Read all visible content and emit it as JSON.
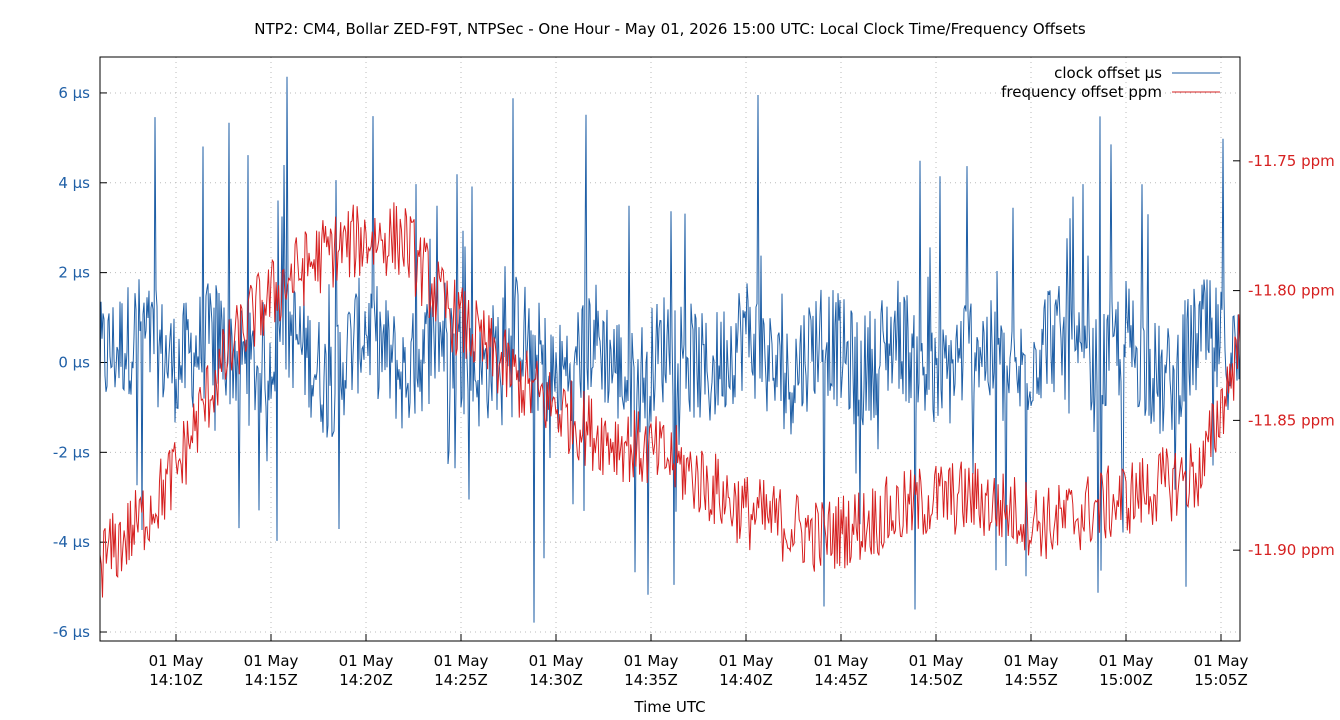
{
  "chart_data": {
    "type": "line",
    "title": "NTP2: CM4, Bollar ZED-F9T, NTPSec - One Hour - May 01, 2026 15:00 UTC: Local Clock Time/Frequency Offsets",
    "xlabel": "Time UTC",
    "ylabel": "",
    "y2label": "",
    "grid": true,
    "legend_position": "top-right",
    "x_range": [
      "2026-05-01T14:06:00Z",
      "2026-05-01T15:06:00Z"
    ],
    "y_left": {
      "unit": "µs",
      "range": [
        -6.2,
        6.8
      ],
      "ticks": [
        6,
        4,
        2,
        0,
        -2,
        -4,
        -6
      ],
      "tick_labels": [
        "6 µs",
        "4 µs",
        "2 µs",
        "0 µs",
        "-2 µs",
        "-4 µs",
        "-6 µs"
      ]
    },
    "y_right": {
      "unit": "ppm",
      "range": [
        -11.935,
        -11.71
      ],
      "ticks": [
        -11.75,
        -11.8,
        -11.85,
        -11.9
      ],
      "tick_labels": [
        "-11.75 ppm",
        "-11.80 ppm",
        "-11.85 ppm",
        "-11.90 ppm"
      ]
    },
    "x_ticks": [
      {
        "time": "2026-05-01T14:10:00Z",
        "line1": "01 May",
        "line2": "14:10Z"
      },
      {
        "time": "2026-05-01T14:15:00Z",
        "line1": "01 May",
        "line2": "14:15Z"
      },
      {
        "time": "2026-05-01T14:20:00Z",
        "line1": "01 May",
        "line2": "14:20Z"
      },
      {
        "time": "2026-05-01T14:25:00Z",
        "line1": "01 May",
        "line2": "14:25Z"
      },
      {
        "time": "2026-05-01T14:30:00Z",
        "line1": "01 May",
        "line2": "14:30Z"
      },
      {
        "time": "2026-05-01T14:35:00Z",
        "line1": "01 May",
        "line2": "14:35Z"
      },
      {
        "time": "2026-05-01T14:40:00Z",
        "line1": "01 May",
        "line2": "14:40Z"
      },
      {
        "time": "2026-05-01T14:45:00Z",
        "line1": "01 May",
        "line2": "14:45Z"
      },
      {
        "time": "2026-05-01T14:50:00Z",
        "line1": "01 May",
        "line2": "14:50Z"
      },
      {
        "time": "2026-05-01T14:55:00Z",
        "line1": "01 May",
        "line2": "14:55Z"
      },
      {
        "time": "2026-05-01T15:00:00Z",
        "line1": "01 May",
        "line2": "15:00Z"
      },
      {
        "time": "2026-05-01T15:05:00Z",
        "line1": "01 May",
        "line2": "15:05Z"
      }
    ],
    "series": [
      {
        "name": "clock offset µs",
        "axis": "left",
        "color": "#1f5fa6",
        "x": [
          "2026-05-01T14:06:00Z",
          "2026-05-01T14:08:00Z",
          "2026-05-01T14:10:00Z",
          "2026-05-01T14:12:00Z",
          "2026-05-01T14:14:00Z",
          "2026-05-01T14:16:00Z",
          "2026-05-01T14:18:00Z",
          "2026-05-01T14:20:00Z",
          "2026-05-01T14:22:00Z",
          "2026-05-01T14:24:00Z",
          "2026-05-01T14:26:00Z",
          "2026-05-01T14:28:00Z",
          "2026-05-01T14:30:00Z",
          "2026-05-01T14:32:00Z",
          "2026-05-01T14:34:00Z",
          "2026-05-01T14:36:00Z",
          "2026-05-01T14:38:00Z",
          "2026-05-01T14:40:00Z",
          "2026-05-01T14:42:00Z",
          "2026-05-01T14:44:00Z",
          "2026-05-01T14:46:00Z",
          "2026-05-01T14:48:00Z",
          "2026-05-01T14:50:00Z",
          "2026-05-01T14:52:00Z",
          "2026-05-01T14:54:00Z",
          "2026-05-01T14:56:00Z",
          "2026-05-01T14:58:00Z",
          "2026-05-01T15:00:00Z",
          "2026-05-01T15:02:00Z",
          "2026-05-01T15:04:00Z",
          "2026-05-01T15:06:00Z"
        ],
        "values": [
          0.3,
          4.6,
          -0.5,
          3.9,
          -1.2,
          5.0,
          -3.4,
          5.6,
          -2.5,
          4.8,
          -1.8,
          5.1,
          -2.9,
          4.3,
          -4.1,
          3.6,
          -2.2,
          4.9,
          -3.6,
          4.5,
          -1.9,
          4.4,
          -4.2,
          3.8,
          -3.3,
          4.6,
          -2.9,
          4.1,
          -3.9,
          4.5,
          0.2
        ]
      },
      {
        "name": "frequency offset ppm",
        "axis": "right",
        "color": "#d62020",
        "x": [
          "2026-05-01T14:06:00Z",
          "2026-05-01T14:08:00Z",
          "2026-05-01T14:10:00Z",
          "2026-05-01T14:12:00Z",
          "2026-05-01T14:14:00Z",
          "2026-05-01T14:16:00Z",
          "2026-05-01T14:18:00Z",
          "2026-05-01T14:20:00Z",
          "2026-05-01T14:22:00Z",
          "2026-05-01T14:24:00Z",
          "2026-05-01T14:26:00Z",
          "2026-05-01T14:28:00Z",
          "2026-05-01T14:30:00Z",
          "2026-05-01T14:32:00Z",
          "2026-05-01T14:34:00Z",
          "2026-05-01T14:36:00Z",
          "2026-05-01T14:38:00Z",
          "2026-05-01T14:40:00Z",
          "2026-05-01T14:42:00Z",
          "2026-05-01T14:44:00Z",
          "2026-05-01T14:46:00Z",
          "2026-05-01T14:48:00Z",
          "2026-05-01T14:50:00Z",
          "2026-05-01T14:52:00Z",
          "2026-05-01T14:54:00Z",
          "2026-05-01T14:56:00Z",
          "2026-05-01T14:58:00Z",
          "2026-05-01T15:00:00Z",
          "2026-05-01T15:02:00Z",
          "2026-05-01T15:04:00Z",
          "2026-05-01T15:06:00Z"
        ],
        "values": [
          -11.905,
          -11.89,
          -11.87,
          -11.835,
          -11.81,
          -11.795,
          -11.785,
          -11.78,
          -11.78,
          -11.805,
          -11.82,
          -11.835,
          -11.845,
          -11.855,
          -11.86,
          -11.865,
          -11.875,
          -11.885,
          -11.89,
          -11.895,
          -11.89,
          -11.885,
          -11.88,
          -11.88,
          -11.885,
          -11.89,
          -11.885,
          -11.88,
          -11.875,
          -11.87,
          -11.82
        ]
      }
    ]
  }
}
